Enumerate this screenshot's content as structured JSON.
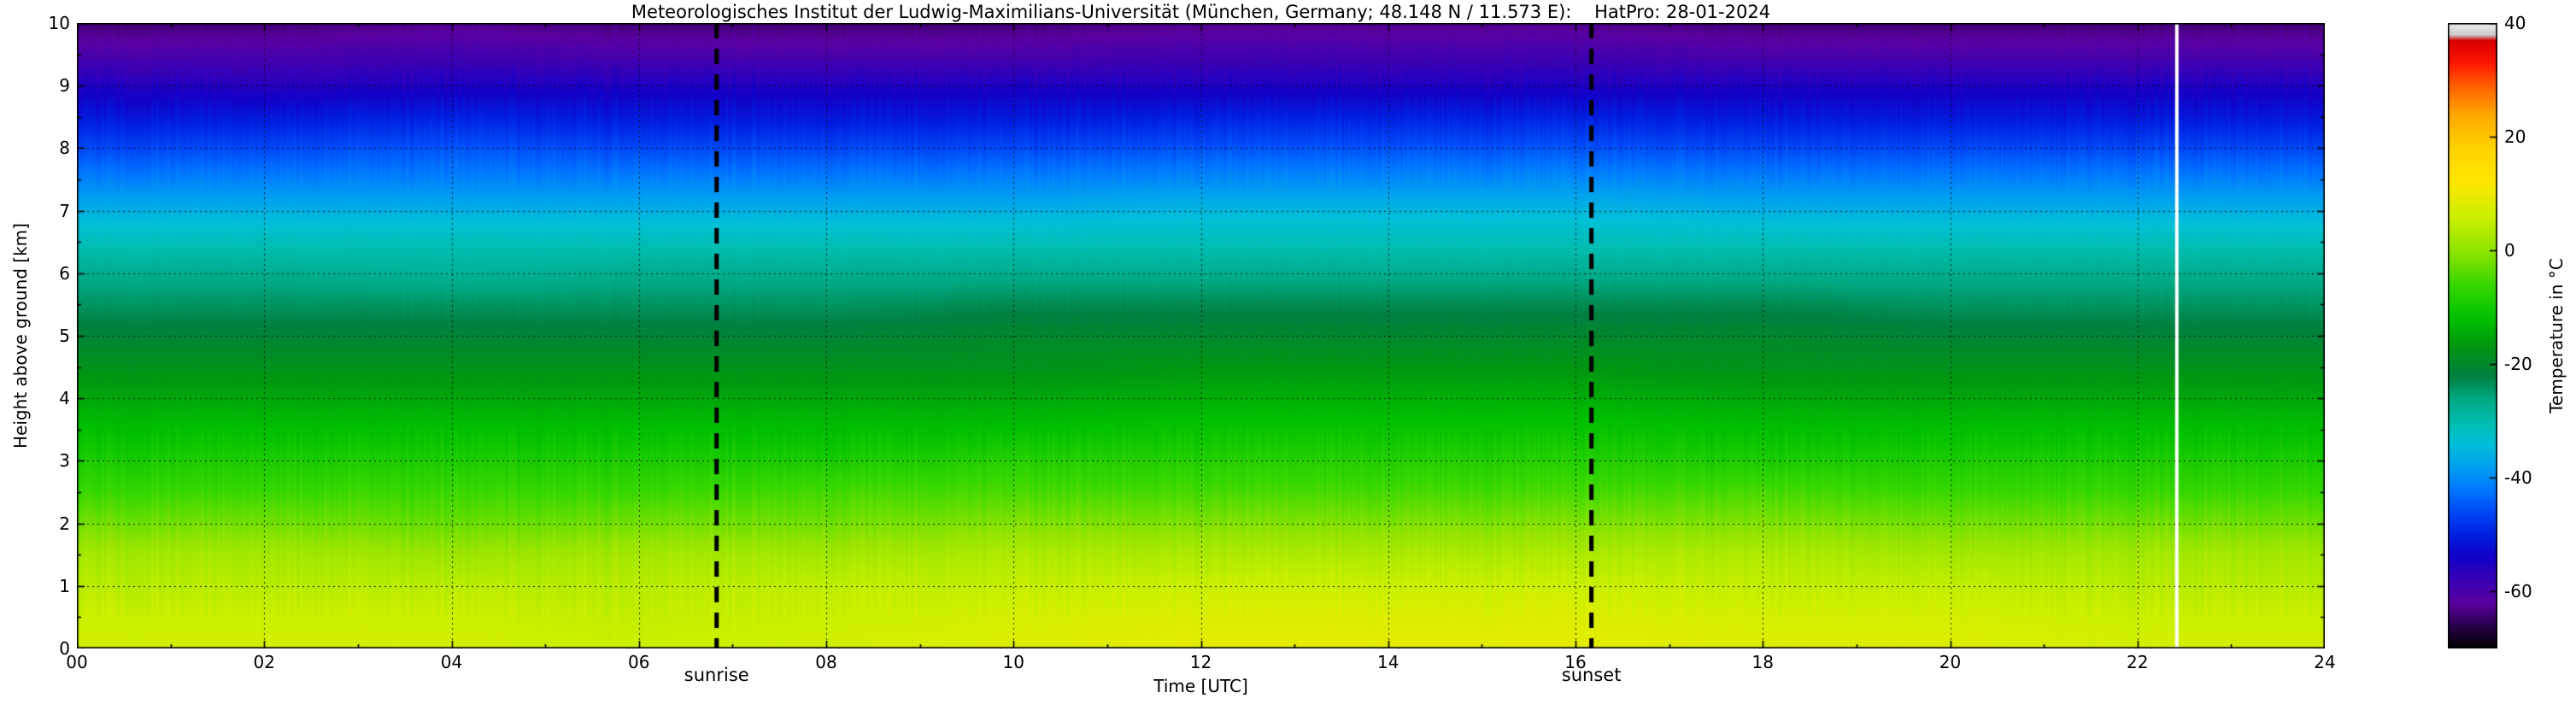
{
  "chart_data": {
    "type": "heatmap",
    "title": "Meteorologisches Institut der Ludwig-Maximilians-Universität (München, Germany; 48.148 N / 11.573 E):    HatPro: 28-01-2024",
    "xlabel": "Time [UTC]",
    "ylabel": "Height above ground [km]",
    "colorbar_label": "Temperature in  °C",
    "x_range": [
      0,
      24
    ],
    "y_range": [
      0,
      10
    ],
    "x_ticks": [
      "00",
      "02",
      "04",
      "06",
      "08",
      "10",
      "12",
      "14",
      "16",
      "18",
      "20",
      "22",
      "24"
    ],
    "x_tick_values": [
      0,
      2,
      4,
      6,
      8,
      10,
      12,
      14,
      16,
      18,
      20,
      22,
      24
    ],
    "y_ticks": [
      "0",
      "1",
      "2",
      "3",
      "4",
      "5",
      "6",
      "7",
      "8",
      "9",
      "10"
    ],
    "y_tick_values": [
      0,
      1,
      2,
      3,
      4,
      5,
      6,
      7,
      8,
      9,
      10
    ],
    "grid": "dotted black lines at major x and y ticks",
    "legend_position": "colorbar-right",
    "colorbar_range": [
      -70,
      40
    ],
    "colorbar_ticks": [
      "40",
      "20",
      "0",
      "-20",
      "-40",
      "-60"
    ],
    "colorbar_tick_values": [
      40,
      20,
      0,
      -20,
      -40,
      -60
    ],
    "colormap_stops": [
      [
        -70,
        "#000000"
      ],
      [
        -66,
        "#28004a"
      ],
      [
        -62,
        "#5a00a0"
      ],
      [
        -58,
        "#3a00b4"
      ],
      [
        -54,
        "#1400c8"
      ],
      [
        -50,
        "#0020e0"
      ],
      [
        -46,
        "#0048f8"
      ],
      [
        -42,
        "#0078ff"
      ],
      [
        -38,
        "#00a0f0"
      ],
      [
        -34,
        "#00c0d8"
      ],
      [
        -30,
        "#00bcae"
      ],
      [
        -26,
        "#00a882"
      ],
      [
        -22,
        "#008040"
      ],
      [
        -17,
        "#009612"
      ],
      [
        -12,
        "#00c000"
      ],
      [
        -6,
        "#38d800"
      ],
      [
        0,
        "#90e400"
      ],
      [
        6,
        "#ccf000"
      ],
      [
        12,
        "#ffe800"
      ],
      [
        18,
        "#ffd400"
      ],
      [
        24,
        "#ffa800"
      ],
      [
        29,
        "#ff6000"
      ],
      [
        33,
        "#ff1800"
      ],
      [
        37,
        "#d80000"
      ],
      [
        38,
        "#cccccc"
      ],
      [
        40,
        "#eeeeee"
      ]
    ],
    "times_utc": [
      0,
      2,
      4,
      6,
      8,
      10,
      12,
      14,
      16,
      18,
      20,
      22,
      24
    ],
    "heights_km": [
      0,
      0.5,
      1,
      1.5,
      2,
      2.5,
      3,
      3.5,
      4,
      4.5,
      5,
      5.5,
      6,
      6.5,
      7,
      7.5,
      8,
      8.5,
      9,
      9.5,
      10
    ],
    "temperature_c_rows_bottom_to_top": [
      [
        7,
        7,
        7,
        6,
        7,
        8,
        9,
        9,
        9,
        8,
        8,
        7,
        7
      ],
      [
        6,
        6,
        6,
        5,
        6,
        7,
        8,
        8,
        8,
        7,
        7,
        6,
        6
      ],
      [
        4,
        4,
        4,
        4,
        5,
        5,
        6,
        6,
        6,
        5,
        5,
        4,
        4
      ],
      [
        2,
        2,
        1,
        2,
        2,
        3,
        3,
        3,
        3,
        3,
        2,
        2,
        2
      ],
      [
        -2,
        -2,
        -3,
        -2,
        -2,
        -1,
        -1,
        -1,
        -1,
        -1,
        -2,
        -2,
        -2
      ],
      [
        -6,
        -6,
        -6,
        -6,
        -5,
        -5,
        -5,
        -5,
        -5,
        -5,
        -6,
        -6,
        -6
      ],
      [
        -9,
        -9,
        -9,
        -9,
        -9,
        -8,
        -8,
        -8,
        -8,
        -9,
        -9,
        -9,
        -9
      ],
      [
        -12,
        -12,
        -12,
        -12,
        -12,
        -12,
        -11,
        -11,
        -11,
        -12,
        -12,
        -12,
        -12
      ],
      [
        -15,
        -15,
        -15,
        -15,
        -15,
        -15,
        -14,
        -14,
        -14,
        -15,
        -15,
        -15,
        -15
      ],
      [
        -18,
        -18,
        -18,
        -18,
        -18,
        -18,
        -17,
        -17,
        -17,
        -18,
        -18,
        -18,
        -18
      ],
      [
        -21,
        -21,
        -21,
        -21,
        -21,
        -20,
        -20,
        -20,
        -20,
        -20,
        -21,
        -21,
        -21
      ],
      [
        -24,
        -24,
        -24,
        -24,
        -24,
        -23,
        -23,
        -23,
        -23,
        -23,
        -24,
        -24,
        -24
      ],
      [
        -27,
        -27,
        -28,
        -27,
        -27,
        -27,
        -27,
        -27,
        -27,
        -27,
        -27,
        -27,
        -27
      ],
      [
        -31,
        -31,
        -31,
        -31,
        -31,
        -31,
        -31,
        -31,
        -31,
        -31,
        -31,
        -31,
        -31
      ],
      [
        -36,
        -36,
        -36,
        -36,
        -36,
        -36,
        -35,
        -35,
        -35,
        -36,
        -36,
        -36,
        -36
      ],
      [
        -41,
        -41,
        -41,
        -41,
        -41,
        -41,
        -40,
        -40,
        -40,
        -41,
        -41,
        -41,
        -41
      ],
      [
        -46,
        -46,
        -45,
        -46,
        -46,
        -46,
        -45,
        -45,
        -45,
        -46,
        -46,
        -46,
        -46
      ],
      [
        -51,
        -51,
        -50,
        -51,
        -51,
        -51,
        -50,
        -50,
        -50,
        -51,
        -51,
        -51,
        -51
      ],
      [
        -55,
        -56,
        -55,
        -55,
        -55,
        -55,
        -55,
        -55,
        -55,
        -55,
        -55,
        -55,
        -55
      ],
      [
        -60,
        -60,
        -59,
        -60,
        -60,
        -60,
        -59,
        -59,
        -59,
        -60,
        -60,
        -60,
        -60
      ],
      [
        -64,
        -64,
        -63,
        -64,
        -64,
        -64,
        -63,
        -63,
        -63,
        -64,
        -64,
        -64,
        -64
      ]
    ],
    "annotations": {
      "sunrise": {
        "label": "sunrise",
        "time_utc": 6.83
      },
      "sunset": {
        "label": "sunset",
        "time_utc": 16.17
      },
      "data_gap_line_utc": 22.42
    }
  }
}
